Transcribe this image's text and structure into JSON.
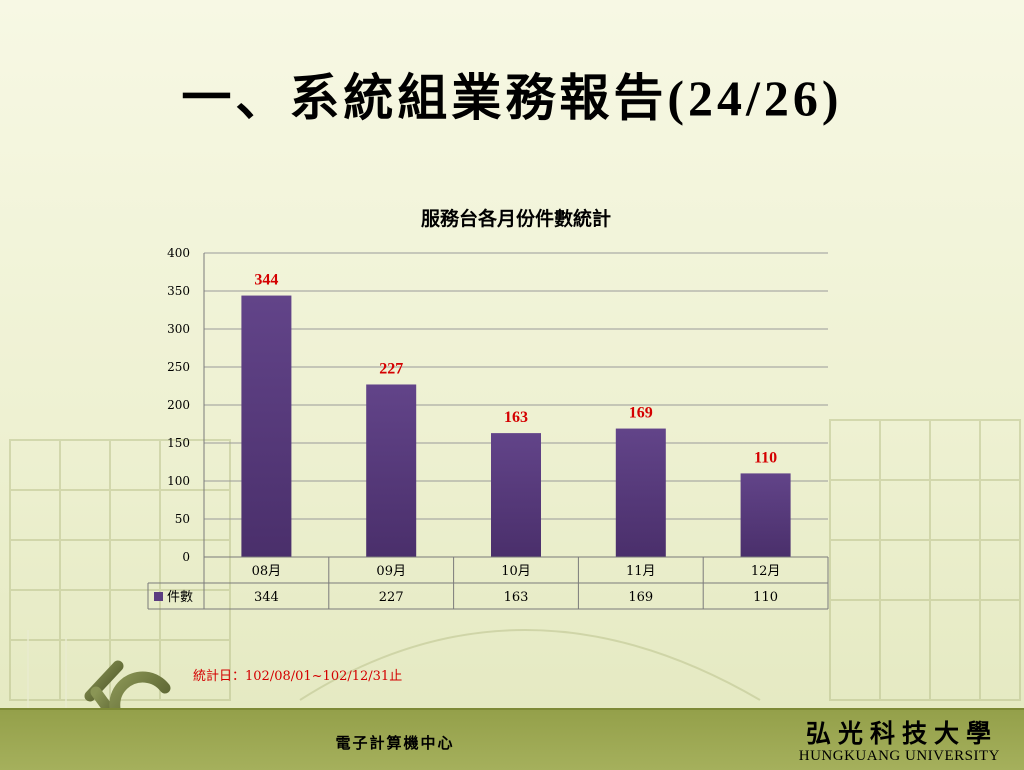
{
  "slide": {
    "title": "一、系統組業務報告(24/26)",
    "footnote": "統計日：102/08/01~102/12/31止"
  },
  "footer": {
    "center_text": "電子計算機中心",
    "university_cn": "弘光科技大學",
    "university_en": "HUNGKUANG UNIVERSITY"
  },
  "logo": {
    "letters": "HKC"
  },
  "chart_data": {
    "type": "bar",
    "title": "服務台各月份件數統計",
    "categories": [
      "08月",
      "09月",
      "10月",
      "11月",
      "12月"
    ],
    "series": [
      {
        "name": "件數",
        "values": [
          344,
          227,
          163,
          169,
          110
        ],
        "color": "#5b3c80"
      }
    ],
    "ylim": [
      0,
      400
    ],
    "yticks": [
      0,
      50,
      100,
      150,
      200,
      250,
      300,
      350,
      400
    ],
    "grid": true,
    "data_label_color": "#d40000",
    "data_table": true
  }
}
